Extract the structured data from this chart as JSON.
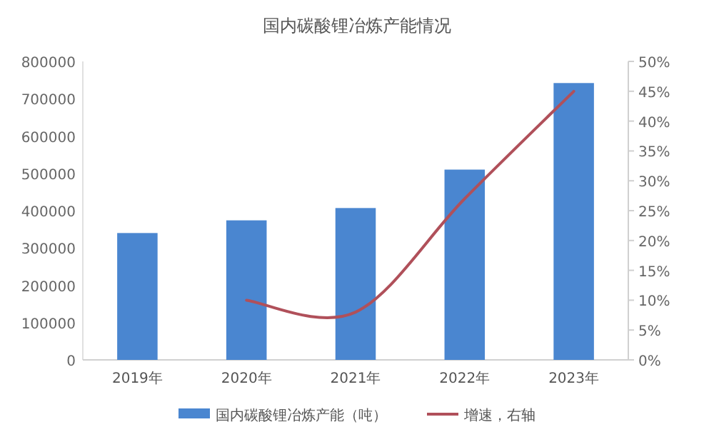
{
  "chart_data": {
    "type": "bar",
    "title": "国内碳酸锂冶炼产能情况",
    "categories": [
      "2019年",
      "2020年",
      "2021年",
      "2022年",
      "2023年"
    ],
    "series": [
      {
        "name": "国内碳酸锂冶炼产能（吨）",
        "color": "#4a86d0",
        "values": [
          340000,
          374000,
          407000,
          510000,
          742000
        ]
      },
      {
        "name": "增速，右轴",
        "type": "line",
        "axis": "y2",
        "color": "#b0505a",
        "values": [
          null,
          10,
          8,
          27,
          45
        ]
      }
    ],
    "ylim": [
      0,
      800000
    ],
    "yticks": [
      0,
      100000,
      200000,
      300000,
      400000,
      500000,
      600000,
      700000,
      800000
    ],
    "y2lim": [
      0,
      50
    ],
    "y2ticks": [
      {
        "value": 0,
        "label": "0%"
      },
      {
        "value": 5,
        "label": "5%"
      },
      {
        "value": 10,
        "label": "10%"
      },
      {
        "value": 15,
        "label": "15%"
      },
      {
        "value": 20,
        "label": "20%"
      },
      {
        "value": 25,
        "label": "25%"
      },
      {
        "value": 30,
        "label": "30%"
      },
      {
        "value": 35,
        "label": "35%"
      },
      {
        "value": 40,
        "label": "40%"
      },
      {
        "value": 45,
        "label": "45%"
      },
      {
        "value": 50,
        "label": "50%"
      }
    ],
    "legend": "bottom"
  }
}
